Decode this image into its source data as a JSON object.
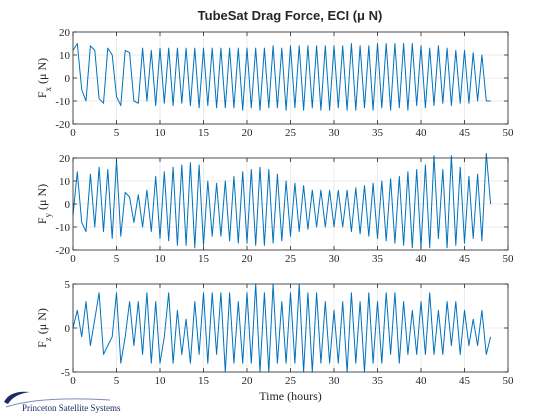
{
  "figure": {
    "logo_text": "Princeton Satellite Systems",
    "line_color": "#0072BD",
    "grid_color": "#e6e6e6"
  },
  "chart_data": [
    {
      "type": "line",
      "title": "TubeSat Drag Force, ECI (μ N)",
      "ylabel_main": "F",
      "ylabel_sub": "x",
      "ylabel_unit": "(μ N)",
      "xlabel": "",
      "xlim": [
        0,
        50
      ],
      "ylim": [
        -20,
        20
      ],
      "xticks": [
        0,
        5,
        10,
        15,
        20,
        25,
        30,
        35,
        40,
        45,
        50
      ],
      "yticks": [
        -20,
        -10,
        0,
        10,
        20
      ],
      "grid": true,
      "x": [
        0,
        0.5,
        1,
        1.5,
        2,
        2.5,
        3,
        3.5,
        4,
        4.5,
        5,
        5.5,
        6,
        6.5,
        7,
        7.5,
        8,
        8.5,
        9,
        9.5,
        10,
        10.5,
        11,
        11.5,
        12,
        12.5,
        13,
        13.5,
        14,
        14.5,
        15,
        15.5,
        16,
        16.5,
        17,
        17.5,
        18,
        18.5,
        19,
        19.5,
        20,
        20.5,
        21,
        21.5,
        22,
        22.5,
        23,
        23.5,
        24,
        24.5,
        25,
        25.5,
        26,
        26.5,
        27,
        27.5,
        28,
        28.5,
        29,
        29.5,
        30,
        30.5,
        31,
        31.5,
        32,
        32.5,
        33,
        33.5,
        34,
        34.5,
        35,
        35.5,
        36,
        36.5,
        37,
        37.5,
        38,
        38.5,
        39,
        39.5,
        40,
        40.5,
        41,
        41.5,
        42,
        42.5,
        43,
        43.5,
        44,
        44.5,
        45,
        45.5,
        46,
        46.5,
        47,
        47.5,
        48
      ],
      "y": [
        12,
        15,
        -5,
        -10,
        14,
        12,
        -9,
        -11,
        13,
        10,
        -8,
        -12,
        12,
        11,
        -10,
        -11,
        13,
        -10,
        12,
        -12,
        13,
        -11,
        13,
        -12,
        13,
        -11,
        13,
        -12,
        13,
        -13,
        13,
        -12,
        13,
        -13,
        13,
        -13,
        13,
        -13,
        13,
        -14,
        13,
        -13,
        13,
        -14,
        13,
        -13,
        14,
        -13,
        13,
        -14,
        14,
        -13,
        14,
        -14,
        14,
        -13,
        14,
        -14,
        14,
        -14,
        14,
        -13,
        14,
        -14,
        15,
        -14,
        14,
        -13,
        14,
        -14,
        15,
        -13,
        15,
        -14,
        15,
        -13,
        15,
        -14,
        15,
        -12,
        14,
        -13,
        13,
        -12,
        14,
        -11,
        13,
        -12,
        12,
        -11,
        12,
        -11,
        11,
        -10,
        10,
        -10,
        -10
      ]
    },
    {
      "type": "line",
      "title": "",
      "ylabel_main": "F",
      "ylabel_sub": "y",
      "ylabel_unit": "(μ N)",
      "xlabel": "",
      "xlim": [
        0,
        50
      ],
      "ylim": [
        -20,
        20
      ],
      "xticks": [
        0,
        5,
        10,
        15,
        20,
        25,
        30,
        35,
        40,
        45,
        50
      ],
      "yticks": [
        -20,
        -10,
        0,
        10,
        20
      ],
      "grid": true,
      "x": [
        0,
        0.5,
        1,
        1.5,
        2,
        2.5,
        3,
        3.5,
        4,
        4.5,
        5,
        5.5,
        6,
        6.5,
        7,
        7.5,
        8,
        8.5,
        9,
        9.5,
        10,
        10.5,
        11,
        11.5,
        12,
        12.5,
        13,
        13.5,
        14,
        14.5,
        15,
        15.5,
        16,
        16.5,
        17,
        17.5,
        18,
        18.5,
        19,
        19.5,
        20,
        20.5,
        21,
        21.5,
        22,
        22.5,
        23,
        23.5,
        24,
        24.5,
        25,
        25.5,
        26,
        26.5,
        27,
        27.5,
        28,
        28.5,
        29,
        29.5,
        30,
        30.5,
        31,
        31.5,
        32,
        32.5,
        33,
        33.5,
        34,
        34.5,
        35,
        35.5,
        36,
        36.5,
        37,
        37.5,
        38,
        38.5,
        39,
        39.5,
        40,
        40.5,
        41,
        41.5,
        42,
        42.5,
        43,
        43.5,
        44,
        44.5,
        45,
        45.5,
        46,
        46.5,
        47,
        47.5,
        48
      ],
      "y": [
        -5,
        14,
        -8,
        -12,
        13,
        -10,
        16,
        -12,
        15,
        -15,
        19,
        -14,
        5,
        3,
        -8,
        4,
        -10,
        6,
        -12,
        12,
        -15,
        14,
        -16,
        16,
        -18,
        17,
        -18,
        18,
        -19,
        17,
        -18,
        10,
        -14,
        9,
        -14,
        10,
        -16,
        12,
        -17,
        14,
        -17,
        15,
        -18,
        16,
        -18,
        15,
        -17,
        13,
        -16,
        10,
        -14,
        9,
        -12,
        8,
        -11,
        6,
        -10,
        6,
        -10,
        6,
        -10,
        6,
        -10,
        6,
        -12,
        7,
        -13,
        8,
        -14,
        9,
        -15,
        10,
        -16,
        11,
        -17,
        12,
        -18,
        14,
        -19,
        15,
        -19,
        17,
        -19,
        21,
        -15,
        15,
        -19,
        21,
        -18,
        16,
        -17,
        12,
        -15,
        13,
        -16,
        22,
        0
      ]
    },
    {
      "type": "line",
      "title": "",
      "ylabel_main": "F",
      "ylabel_sub": "z",
      "ylabel_unit": "(μ N)",
      "xlabel": "Time (hours)",
      "xlim": [
        0,
        50
      ],
      "ylim": [
        -5,
        5
      ],
      "xticks": [
        0,
        5,
        10,
        15,
        20,
        25,
        30,
        35,
        40,
        45,
        50
      ],
      "yticks": [
        -5,
        0,
        5
      ],
      "grid": true,
      "x": [
        0,
        0.5,
        1,
        1.5,
        2,
        2.5,
        3,
        3.5,
        4,
        4.5,
        5,
        5.5,
        6,
        6.5,
        7,
        7.5,
        8,
        8.5,
        9,
        9.5,
        10,
        10.5,
        11,
        11.5,
        12,
        12.5,
        13,
        13.5,
        14,
        14.5,
        15,
        15.5,
        16,
        16.5,
        17,
        17.5,
        18,
        18.5,
        19,
        19.5,
        20,
        20.5,
        21,
        21.5,
        22,
        22.5,
        23,
        23.5,
        24,
        24.5,
        25,
        25.5,
        26,
        26.5,
        27,
        27.5,
        28,
        28.5,
        29,
        29.5,
        30,
        30.5,
        31,
        31.5,
        32,
        32.5,
        33,
        33.5,
        34,
        34.5,
        35,
        35.5,
        36,
        36.5,
        37,
        37.5,
        38,
        38.5,
        39,
        39.5,
        40,
        40.5,
        41,
        41.5,
        42,
        42.5,
        43,
        43.5,
        44,
        44.5,
        45,
        45.5,
        46,
        46.5,
        47,
        47.5,
        48
      ],
      "y": [
        0,
        2,
        -1,
        3,
        -2,
        1,
        4,
        -3,
        -2,
        -1,
        4,
        -4,
        -1,
        3,
        -2,
        3,
        -3,
        4,
        -4,
        3,
        -4,
        -1,
        4,
        -4,
        2,
        -3,
        1,
        -4,
        3,
        -3,
        4,
        -4,
        4,
        -3,
        4,
        -5,
        4,
        -4,
        3,
        -4,
        4,
        -4,
        5,
        -5,
        4,
        -5,
        5,
        -4,
        3,
        -4,
        4,
        -4,
        5,
        -5,
        4,
        -5,
        4,
        -4,
        3,
        -4,
        2,
        -4,
        3,
        -5,
        4,
        -4,
        3,
        -5,
        4,
        -4,
        3,
        -4,
        4,
        -3,
        4,
        -4,
        3,
        -3,
        2,
        -3,
        3,
        -3,
        4,
        -3,
        2,
        -3,
        3,
        -2,
        3,
        -3,
        2,
        -2,
        1,
        -2,
        2,
        -3,
        -1
      ]
    }
  ]
}
